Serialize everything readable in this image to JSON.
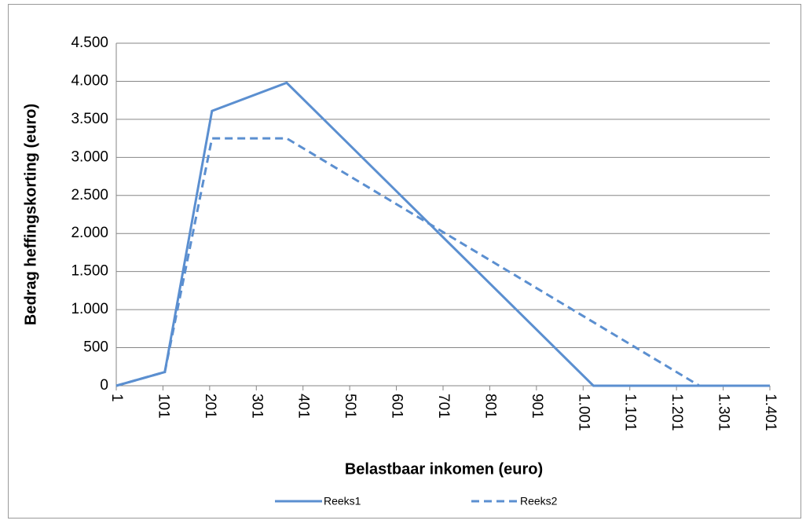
{
  "chart_data": {
    "type": "line",
    "x_label": "Belastbaar inkomen (euro)",
    "y_label": "Bedrag heffingskorting (euro)",
    "x": [
      1,
      105,
      206,
      366,
      1023,
      1250,
      1401
    ],
    "series": [
      {
        "name": "Reeks1",
        "color": "#5b8fd0",
        "dash": false,
        "values": [
          0,
          180,
          3610,
          3980,
          0,
          0,
          0
        ]
      },
      {
        "name": "Reeks2",
        "color": "#5b8fd0",
        "dash": true,
        "values": [
          0,
          180,
          3250,
          3250,
          835,
          0,
          0
        ]
      }
    ],
    "xlim": [
      1,
      1401
    ],
    "xticks": [
      1,
      101,
      201,
      301,
      401,
      501,
      601,
      701,
      801,
      901,
      {
        "value": 1001,
        "label": "1.001"
      },
      {
        "value": 1101,
        "label": "1.101"
      },
      {
        "value": 1201,
        "label": "1.201"
      },
      {
        "value": 1301,
        "label": "1.301"
      },
      {
        "value": 1401,
        "label": "1.401"
      }
    ],
    "ylim": [
      0,
      4500
    ],
    "yticks": [
      0,
      500,
      {
        "value": 1000,
        "label": "1.000"
      },
      {
        "value": 1500,
        "label": "1.500"
      },
      {
        "value": 2000,
        "label": "2.000"
      },
      {
        "value": 2500,
        "label": "2.500"
      },
      {
        "value": 3000,
        "label": "3.000"
      },
      {
        "value": 3500,
        "label": "3.500"
      },
      {
        "value": 4000,
        "label": "4.000"
      },
      {
        "value": 4500,
        "label": "4.500"
      }
    ],
    "grid": true,
    "legend": "bottom"
  }
}
